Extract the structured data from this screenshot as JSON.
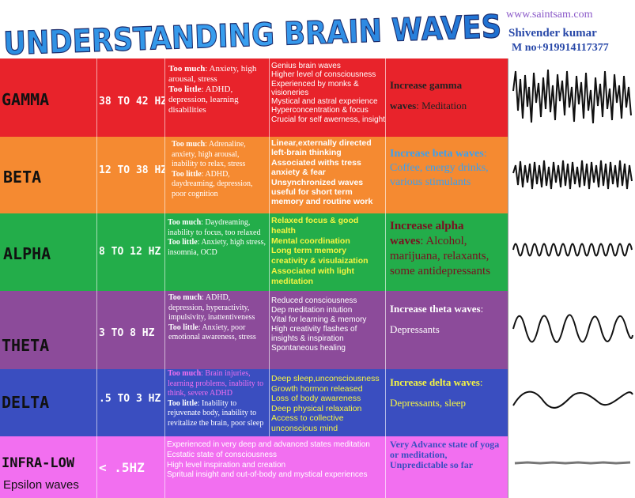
{
  "header": {
    "title": "UNDERSTANDING BRAIN WAVES",
    "website": "www.saintsam.com",
    "author": "Shivender kumar",
    "phone": "M no+919914117377"
  },
  "colors": {
    "gamma": "#e8232b",
    "beta": "#f58a31",
    "alpha": "#23ad4a",
    "theta": "#8c4b9a",
    "delta": "#3a4ec0",
    "infra": "#f26ff0"
  },
  "rows": [
    {
      "name": "GAMMA",
      "hz": "38 TO 42 HZ",
      "too_much_label": "Too much",
      "too_much_text": ": Anxiety, high arousal, stress",
      "too_little_label": "Too little",
      "too_little_text": ": ADHD, depression, learning disabilities",
      "features": [
        "Genius brain waves",
        "Higher level of consciousness",
        "Experienced by monks & visioneries",
        "Mystical and astral experience",
        "Hyperconcentration & focus",
        "Crucial for self awerness, insight"
      ],
      "increase_label": "Increase gamma waves",
      "increase_text": ": Meditation"
    },
    {
      "name": "BETA",
      "hz": "12 TO 38 HZ",
      "too_much_label": "Too much",
      "too_much_text": ": Adrenaline, anxiety, high arousal, inability to relax, stress",
      "too_little_label": "Too little",
      "too_little_text": ": ADHD, daydreaming, depression, poor cognition",
      "features": [
        "Linear,externally directed left-brain thinking",
        "Associated withs tress anxiety & fear",
        "Unsynchronized waves useful for short term memory and routine work"
      ],
      "increase_label": "Increase beta waves",
      "increase_text": ": Coffee, energy drinks, various stimulants"
    },
    {
      "name": "ALPHA",
      "hz": "8 TO 12 HZ",
      "too_much_label": "Too much",
      "too_much_text": ": Daydreaming, inability to focus, too relaxed",
      "too_little_label": "Too little",
      "too_little_text": ": Anxiety, high stress, insomnia, OCD",
      "features": [
        "Relaxed focus & good health",
        "Mental coordination",
        "Long term memory creativity & visulaization",
        "Associated with light meditation"
      ],
      "increase_label": "Increase alpha waves",
      "increase_text": ": Alcohol, marijuana, relaxants, some antidepressants"
    },
    {
      "name": "THETA",
      "hz": "3 TO 8 HZ",
      "too_much_label": "Too much",
      "too_much_text": ": ADHD, depression, hyperactivity, impulsivity, inattentiveness",
      "too_little_label": "Too little",
      "too_little_text": ": Anxiety, poor emotional awareness, stress",
      "features": [
        "Reduced consciousness",
        "Dep meditation intution",
        "Vital for learning & memory",
        "High creativity flashes of insights & inspiration",
        "Spontaneous healing"
      ],
      "increase_label": "Increase theta waves",
      "increase_text": ": Depressants"
    },
    {
      "name": "DELTA",
      "hz": ".5 TO 3 HZ",
      "too_much_label": "Too much",
      "too_much_text": ": Brain injuries, learning problems, inability to think, severe ADHD",
      "too_little_label": "Too little",
      "too_little_text": ": Inability to rejuvenate body, inability to revitalize the brain, poor sleep",
      "features": [
        "Deep sleep,unconsciousness",
        "Growth hormon released",
        "Loss of body awareness",
        "Deep physical relaxation",
        "Access to collective unconscious mind"
      ],
      "increase_label": "Increase delta waves",
      "increase_text": ": Depressants, sleep"
    },
    {
      "name": "INFRA-LOW",
      "subname": "Epsilon waves",
      "hz": "< .5HZ",
      "features": [
        "Experienced in very deep and advanced states meditation",
        "Ecstatic state of consciousness",
        "High level inspiration and creation",
        "Spritual insight and out-of-body and mystical experiences"
      ],
      "increase_label": "Very Advance  state of yoga or meditation, Unpredictable so far"
    }
  ]
}
